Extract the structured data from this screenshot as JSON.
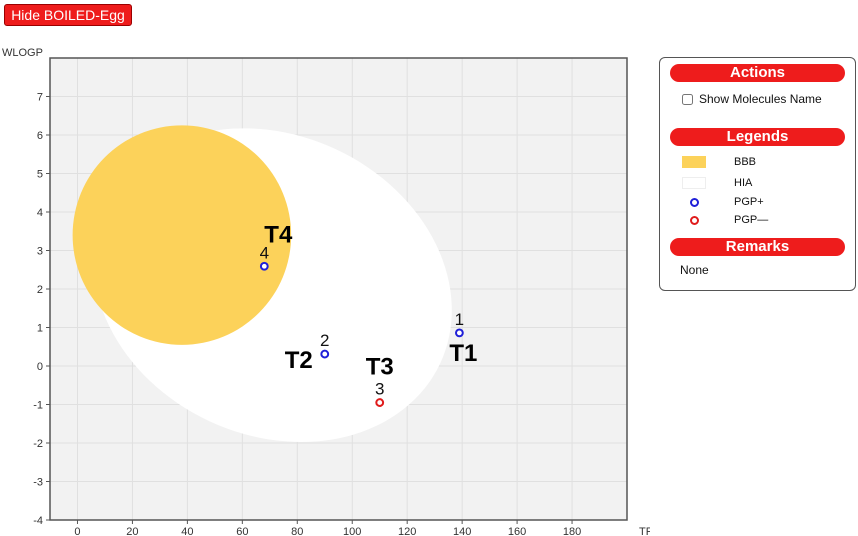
{
  "toolbar": {
    "hide_label": "Hide BOILED-Egg"
  },
  "panel": {
    "actions_title": "Actions",
    "show_names_label": "Show Molecules Name",
    "legends_title": "Legends",
    "legend_items": [
      {
        "label": "BBB",
        "color": "#fcd25a"
      },
      {
        "label": "HIA",
        "color": "#ffffff"
      },
      {
        "label": "PGP+",
        "color": "#1f1fd8"
      },
      {
        "label": "PGP—",
        "color": "#e01b1b"
      }
    ],
    "remarks_title": "Remarks",
    "remarks_text": "None"
  },
  "chart_data": {
    "type": "scatter",
    "xlabel": "TPSA",
    "ylabel": "WLOGP",
    "xlim": [
      -10,
      200
    ],
    "ylim": [
      -4,
      8
    ],
    "x_ticks": [
      0,
      20,
      40,
      60,
      80,
      100,
      120,
      140,
      160,
      180
    ],
    "y_ticks": [
      -4,
      -3,
      -2,
      -1,
      0,
      1,
      2,
      3,
      4,
      5,
      6,
      7
    ],
    "grid": true,
    "regions": [
      {
        "name": "HIA",
        "shape": "ellipse",
        "color": "#ffffff",
        "center": [
          71,
          2.1
        ],
        "semi_axes": [
          74,
          4.45
        ],
        "tilt_deg": 25
      },
      {
        "name": "BBB",
        "shape": "ellipse",
        "color": "#fcd25a",
        "center": [
          38,
          3.4
        ],
        "semi_axes": [
          41,
          2.85
        ],
        "tilt_deg": 0
      }
    ],
    "points": [
      {
        "id": "1",
        "x": 139,
        "y": 0.86,
        "pgp": "PGP+",
        "tag": "T1"
      },
      {
        "id": "2",
        "x": 90,
        "y": 0.31,
        "pgp": "PGP+",
        "tag": "T2"
      },
      {
        "id": "3",
        "x": 110,
        "y": -0.95,
        "pgp": "PGP—",
        "tag": "T3"
      },
      {
        "id": "4",
        "x": 68,
        "y": 2.59,
        "pgp": "PGP+",
        "tag": "T4"
      }
    ],
    "colors": {
      "plot_bg": "#f2f2f2",
      "grid": "#e0e0e0",
      "PGP+": "#1f1fd8",
      "PGP—": "#e01b1b"
    }
  }
}
